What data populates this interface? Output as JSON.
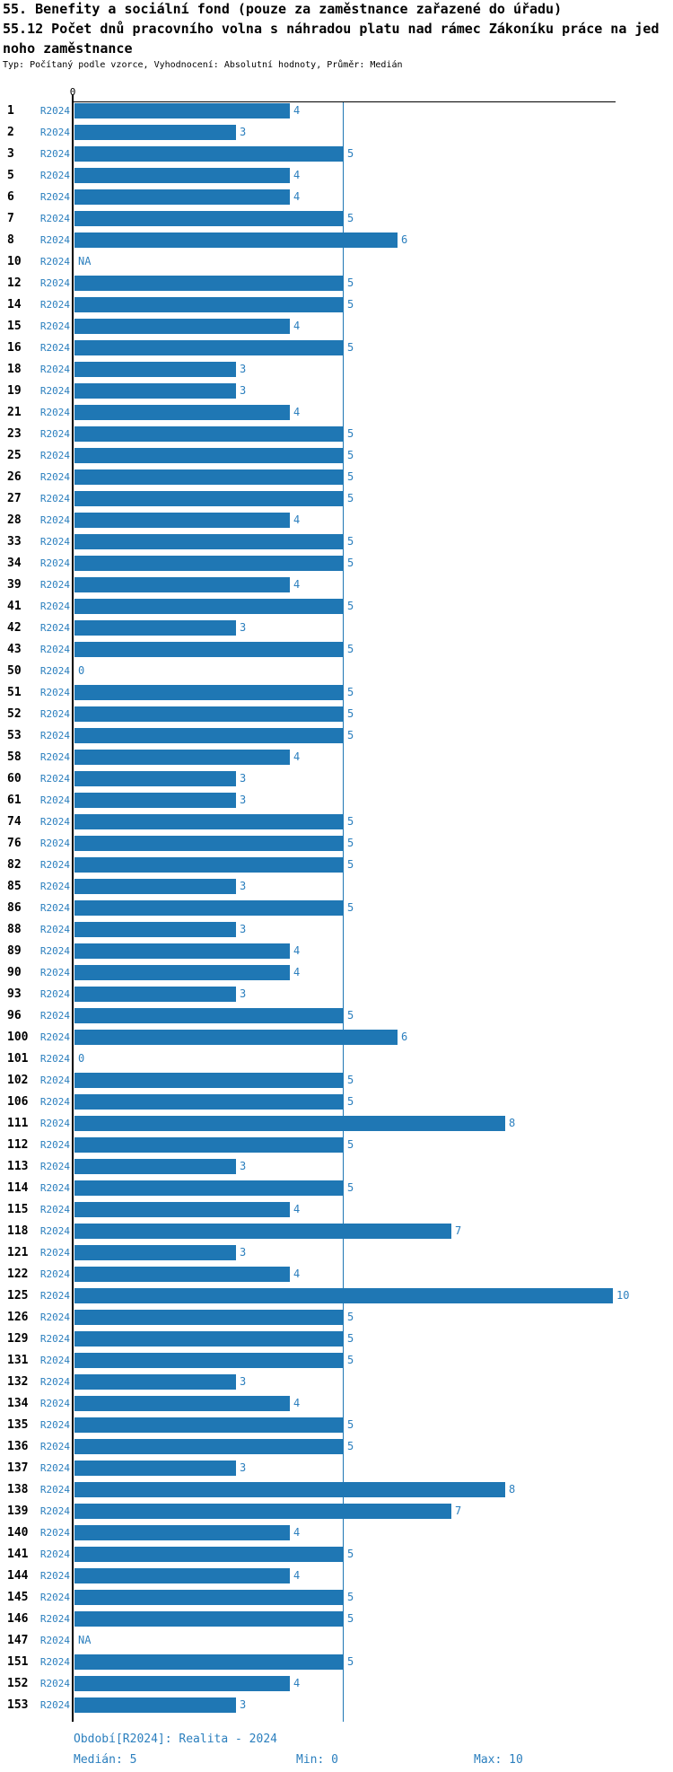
{
  "header": {
    "line1": "55. Benefity a sociální fond (pouze za zaměstnance zařazené do úřadu)",
    "line2": "55.12 Počet dnů pracovního volna s náhradou platu nad rámec Zákoníku práce na jed",
    "line3": "noho zaměstnance",
    "meta": "Typ: Počítaný podle vzorce, Vyhodnocení: Absolutní hodnoty, Průměr: Medián"
  },
  "chart_data": {
    "type": "bar",
    "orientation": "horizontal",
    "title": "55.12 Počet dnů pracovního volna s náhradou platu nad rámec Zákoníku práce na jednoho zaměstnance",
    "series_label": "R2024",
    "x_axis": {
      "min": 0,
      "max": 10,
      "tick_labels": [
        "0"
      ],
      "grid": false
    },
    "reference_line_value": 5,
    "categories": [
      "1",
      "2",
      "3",
      "5",
      "6",
      "7",
      "8",
      "10",
      "12",
      "14",
      "15",
      "16",
      "18",
      "19",
      "21",
      "23",
      "25",
      "26",
      "27",
      "28",
      "33",
      "34",
      "39",
      "41",
      "42",
      "43",
      "50",
      "51",
      "52",
      "53",
      "58",
      "60",
      "61",
      "74",
      "76",
      "82",
      "85",
      "86",
      "88",
      "89",
      "90",
      "93",
      "96",
      "100",
      "101",
      "102",
      "106",
      "111",
      "112",
      "113",
      "114",
      "115",
      "118",
      "121",
      "122",
      "125",
      "126",
      "129",
      "131",
      "132",
      "134",
      "135",
      "136",
      "137",
      "138",
      "139",
      "140",
      "141",
      "144",
      "145",
      "146",
      "147",
      "151",
      "152",
      "153"
    ],
    "values": [
      4,
      3,
      5,
      4,
      4,
      5,
      6,
      "NA",
      5,
      5,
      4,
      5,
      3,
      3,
      4,
      5,
      5,
      5,
      5,
      4,
      5,
      5,
      4,
      5,
      3,
      5,
      0,
      5,
      5,
      5,
      4,
      3,
      3,
      5,
      5,
      5,
      3,
      5,
      3,
      4,
      4,
      3,
      5,
      6,
      0,
      5,
      5,
      8,
      5,
      3,
      5,
      4,
      7,
      3,
      4,
      10,
      5,
      5,
      5,
      3,
      4,
      5,
      5,
      3,
      8,
      7,
      4,
      5,
      4,
      5,
      5,
      "NA",
      5,
      4,
      3
    ],
    "colors": {
      "bar": "#1f77b4",
      "label_text": "#2b7fbe",
      "axis": "#000000"
    }
  },
  "footer": {
    "period": "Období[R2024]: Realita - 2024",
    "median": "Medián: 5",
    "min": "Min: 0",
    "max": "Max: 10"
  }
}
